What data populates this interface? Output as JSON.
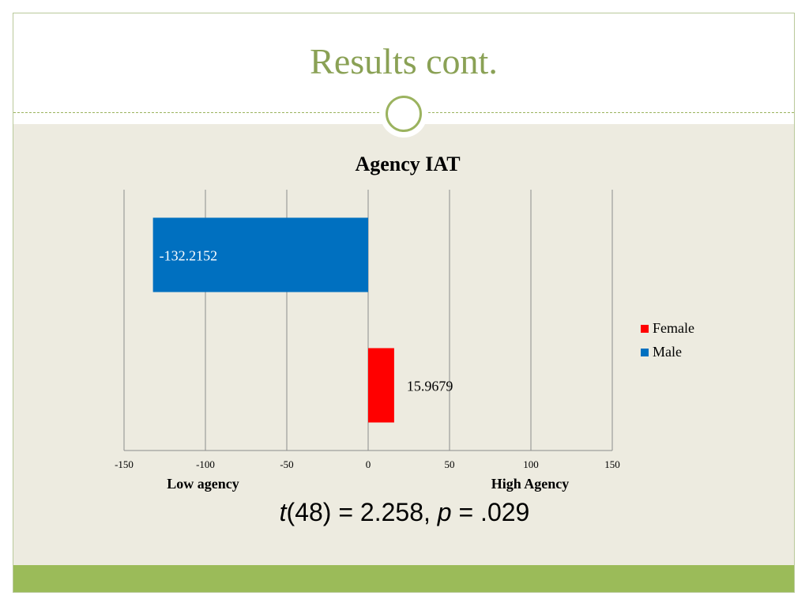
{
  "slide": {
    "title": "Results cont.",
    "stat_parts": {
      "t_symbol": "t",
      "t_df": "(48) = 2.258, ",
      "p_symbol": "p",
      "p_value": " = .029"
    },
    "colors": {
      "title": "#8aa155",
      "accent": "#9bbb59",
      "content_bg": "#edebe0"
    }
  },
  "chart_data": {
    "type": "bar",
    "orientation": "horizontal",
    "title": "Agency IAT",
    "categories": [
      "Male",
      "Female"
    ],
    "values": [
      -132.2152,
      15.9679
    ],
    "data_labels": [
      "-132.2152",
      "15.9679"
    ],
    "colors": [
      "#0070c0",
      "#ff0000"
    ],
    "xlim": [
      -150,
      150
    ],
    "x_ticks": [
      -150,
      -100,
      -50,
      0,
      50,
      100,
      150
    ],
    "x_tick_labels": [
      "-150",
      "-100",
      "-50",
      "0",
      "50",
      "100",
      "150"
    ],
    "x_end_labels": {
      "low": "Low agency",
      "high": "High Agency"
    },
    "grid": true,
    "legend": {
      "position": "right",
      "entries": [
        {
          "name": "Female",
          "color": "#ff0000"
        },
        {
          "name": "Male",
          "color": "#0070c0"
        }
      ]
    }
  }
}
